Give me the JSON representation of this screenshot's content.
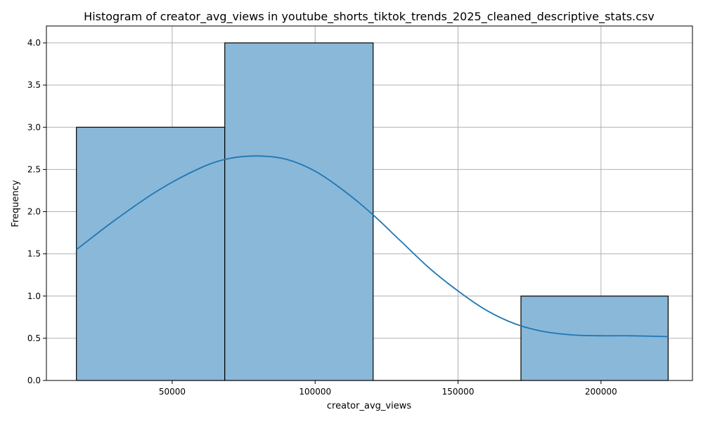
{
  "chart_data": {
    "type": "bar",
    "title": "Histogram of creator_avg_views in youtube_shorts_tiktok_trends_2025_cleaned_descriptive_stats.csv",
    "xlabel": "creator_avg_views",
    "ylabel": "Frequency",
    "xlim": [
      6000,
      232000
    ],
    "ylim": [
      0,
      4.2
    ],
    "x_ticks": [
      50000,
      100000,
      150000,
      200000
    ],
    "x_tick_labels": [
      "50000",
      "100000",
      "150000",
      "200000"
    ],
    "y_ticks": [
      0,
      0.5,
      1.0,
      1.5,
      2.0,
      2.5,
      3.0,
      3.5,
      4.0
    ],
    "y_tick_labels": [
      "0.0",
      "0.5",
      "1.0",
      "1.5",
      "2.0",
      "2.5",
      "3.0",
      "3.5",
      "4.0"
    ],
    "bins": [
      {
        "x0": 16500,
        "x1": 68400,
        "count": 3
      },
      {
        "x0": 68400,
        "x1": 120300,
        "count": 4
      },
      {
        "x0": 120300,
        "x1": 172000,
        "count": 0
      },
      {
        "x0": 172000,
        "x1": 223500,
        "count": 1
      }
    ],
    "kde": {
      "x": [
        16500,
        30000,
        45000,
        60000,
        70000,
        80000,
        90000,
        100000,
        110000,
        120000,
        130000,
        140000,
        150000,
        160000,
        170000,
        180000,
        190000,
        200000,
        210000,
        223500
      ],
      "y": [
        1.55,
        1.9,
        2.25,
        2.52,
        2.63,
        2.66,
        2.62,
        2.48,
        2.25,
        1.97,
        1.65,
        1.33,
        1.06,
        0.83,
        0.67,
        0.58,
        0.54,
        0.53,
        0.53,
        0.52
      ]
    },
    "grid": true,
    "colors": {
      "bar_fill": "#8ab8d8",
      "bar_edge": "#000000",
      "kde_line": "#1f77b4",
      "grid": "#b0b0b0"
    }
  }
}
